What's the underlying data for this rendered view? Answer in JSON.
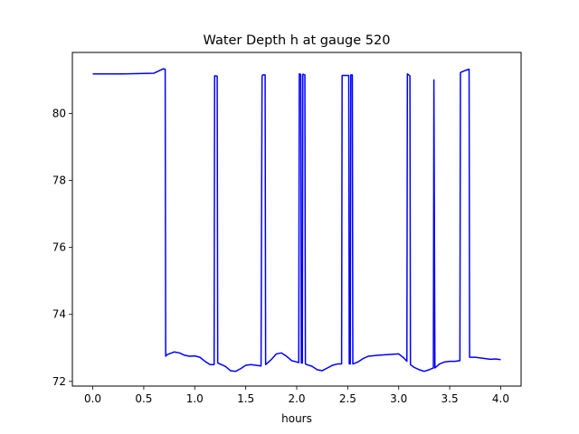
{
  "chart_data": {
    "type": "line",
    "title": "Water Depth h at gauge 520",
    "xlabel": "hours",
    "ylabel": "",
    "xlim": [
      -0.2,
      4.2
    ],
    "ylim": [
      71.86,
      81.82
    ],
    "xticks": [
      0.0,
      0.5,
      1.0,
      1.5,
      2.0,
      2.5,
      3.0,
      3.5,
      4.0
    ],
    "xtick_labels": [
      "0.0",
      "0.5",
      "1.0",
      "1.5",
      "2.0",
      "2.5",
      "3.0",
      "3.5",
      "4.0"
    ],
    "yticks": [
      72,
      74,
      76,
      78,
      80
    ],
    "ytick_labels": [
      "72",
      "74",
      "76",
      "78",
      "80"
    ],
    "grid": false,
    "series": [
      {
        "color": "#0000ff",
        "x": [
          0.0,
          0.3,
          0.6,
          0.69,
          0.71,
          0.715,
          0.73,
          0.8,
          0.85,
          0.9,
          0.95,
          1.0,
          1.05,
          1.1,
          1.15,
          1.19,
          1.195,
          1.22,
          1.225,
          1.3,
          1.35,
          1.4,
          1.45,
          1.5,
          1.55,
          1.6,
          1.65,
          1.66,
          1.665,
          1.69,
          1.695,
          1.75,
          1.8,
          1.85,
          1.9,
          1.95,
          2.0,
          2.02,
          2.025,
          2.04,
          2.045,
          2.055,
          2.06,
          2.08,
          2.085,
          2.1,
          2.15,
          2.2,
          2.25,
          2.3,
          2.35,
          2.4,
          2.44,
          2.445,
          2.51,
          2.515,
          2.525,
          2.53,
          2.545,
          2.55,
          2.6,
          2.65,
          2.7,
          2.8,
          2.9,
          3.0,
          3.05,
          3.08,
          3.085,
          3.11,
          3.115,
          3.15,
          3.2,
          3.25,
          3.3,
          3.34,
          3.345,
          3.355,
          3.4,
          3.45,
          3.5,
          3.55,
          3.6,
          3.605,
          3.65,
          3.69,
          3.695,
          3.75,
          3.8,
          3.85,
          3.9,
          3.95,
          4.0
        ],
        "y": [
          81.18,
          81.18,
          81.2,
          81.33,
          81.32,
          72.75,
          72.8,
          72.88,
          72.85,
          72.78,
          72.75,
          72.76,
          72.72,
          72.6,
          72.5,
          72.5,
          81.12,
          81.11,
          72.55,
          72.45,
          72.32,
          72.3,
          72.38,
          72.48,
          72.5,
          72.48,
          72.46,
          81.1,
          81.15,
          81.15,
          72.5,
          72.65,
          72.82,
          72.85,
          72.75,
          72.62,
          72.58,
          72.56,
          81.18,
          81.16,
          72.55,
          72.55,
          81.17,
          81.15,
          72.52,
          72.5,
          72.45,
          72.35,
          72.32,
          72.4,
          72.48,
          72.52,
          72.52,
          81.13,
          81.13,
          72.52,
          72.52,
          81.15,
          81.15,
          72.52,
          72.58,
          72.68,
          72.75,
          72.78,
          72.8,
          72.82,
          72.7,
          72.6,
          81.18,
          81.12,
          72.5,
          72.42,
          72.35,
          72.3,
          72.35,
          72.4,
          81.0,
          72.4,
          72.52,
          72.58,
          72.6,
          72.6,
          72.62,
          81.22,
          81.28,
          81.32,
          72.72,
          72.72,
          72.7,
          72.68,
          72.66,
          72.67,
          72.65
        ]
      }
    ]
  }
}
